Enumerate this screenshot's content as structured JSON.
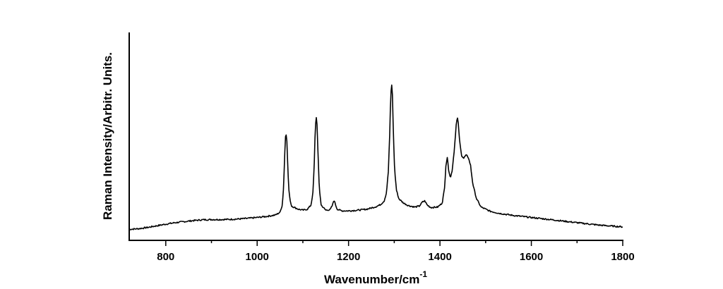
{
  "chart_data": {
    "type": "line",
    "title": "",
    "xlabel": "Wavenumber/cm",
    "xlabel_superscript": "-1",
    "ylabel": "Raman Intensity/Arbitr. Units.",
    "xlim": [
      720,
      1800
    ],
    "ylim": [
      0,
      1
    ],
    "x_ticks": [
      800,
      1000,
      1200,
      1400,
      1600,
      1800
    ],
    "x_tick_labels": [
      "800",
      "1000",
      "1200",
      "1400",
      "1600",
      "1800"
    ],
    "y_ticks_labeled": false,
    "grid": false,
    "legend": "none",
    "line_color": "#000000",
    "series": [
      {
        "values": [
          [
            720,
            0.053
          ],
          [
            740,
            0.056
          ],
          [
            760,
            0.062
          ],
          [
            780,
            0.07
          ],
          [
            800,
            0.078
          ],
          [
            820,
            0.085
          ],
          [
            840,
            0.09
          ],
          [
            860,
            0.095
          ],
          [
            880,
            0.099
          ],
          [
            900,
            0.1
          ],
          [
            920,
            0.1
          ],
          [
            940,
            0.101
          ],
          [
            960,
            0.103
          ],
          [
            980,
            0.106
          ],
          [
            1000,
            0.11
          ],
          [
            1020,
            0.115
          ],
          [
            1040,
            0.122
          ],
          [
            1050,
            0.135
          ],
          [
            1055,
            0.17
          ],
          [
            1058,
            0.26
          ],
          [
            1060,
            0.4
          ],
          [
            1062,
            0.5
          ],
          [
            1063,
            0.52
          ],
          [
            1065,
            0.48
          ],
          [
            1067,
            0.35
          ],
          [
            1070,
            0.22
          ],
          [
            1075,
            0.165
          ],
          [
            1080,
            0.16
          ],
          [
            1090,
            0.15
          ],
          [
            1100,
            0.145
          ],
          [
            1110,
            0.15
          ],
          [
            1118,
            0.17
          ],
          [
            1122,
            0.23
          ],
          [
            1125,
            0.37
          ],
          [
            1127,
            0.53
          ],
          [
            1129,
            0.6
          ],
          [
            1131,
            0.56
          ],
          [
            1133,
            0.42
          ],
          [
            1136,
            0.25
          ],
          [
            1140,
            0.17
          ],
          [
            1150,
            0.145
          ],
          [
            1160,
            0.148
          ],
          [
            1165,
            0.17
          ],
          [
            1168,
            0.195
          ],
          [
            1171,
            0.175
          ],
          [
            1175,
            0.15
          ],
          [
            1185,
            0.142
          ],
          [
            1200,
            0.142
          ],
          [
            1220,
            0.145
          ],
          [
            1240,
            0.15
          ],
          [
            1260,
            0.162
          ],
          [
            1270,
            0.172
          ],
          [
            1278,
            0.19
          ],
          [
            1283,
            0.23
          ],
          [
            1287,
            0.33
          ],
          [
            1290,
            0.5
          ],
          [
            1292,
            0.68
          ],
          [
            1294,
            0.76
          ],
          [
            1296,
            0.7
          ],
          [
            1298,
            0.52
          ],
          [
            1301,
            0.33
          ],
          [
            1305,
            0.24
          ],
          [
            1310,
            0.2
          ],
          [
            1320,
            0.18
          ],
          [
            1330,
            0.168
          ],
          [
            1345,
            0.16
          ],
          [
            1355,
            0.165
          ],
          [
            1362,
            0.185
          ],
          [
            1367,
            0.19
          ],
          [
            1372,
            0.17
          ],
          [
            1380,
            0.158
          ],
          [
            1395,
            0.16
          ],
          [
            1405,
            0.18
          ],
          [
            1410,
            0.25
          ],
          [
            1413,
            0.36
          ],
          [
            1416,
            0.4
          ],
          [
            1419,
            0.34
          ],
          [
            1423,
            0.3
          ],
          [
            1427,
            0.34
          ],
          [
            1432,
            0.45
          ],
          [
            1436,
            0.57
          ],
          [
            1439,
            0.59
          ],
          [
            1443,
            0.48
          ],
          [
            1447,
            0.41
          ],
          [
            1452,
            0.395
          ],
          [
            1457,
            0.41
          ],
          [
            1462,
            0.4
          ],
          [
            1467,
            0.36
          ],
          [
            1472,
            0.27
          ],
          [
            1480,
            0.2
          ],
          [
            1490,
            0.16
          ],
          [
            1510,
            0.14
          ],
          [
            1530,
            0.13
          ],
          [
            1560,
            0.12
          ],
          [
            1600,
            0.11
          ],
          [
            1650,
            0.098
          ],
          [
            1700,
            0.085
          ],
          [
            1750,
            0.073
          ],
          [
            1800,
            0.065
          ]
        ]
      }
    ]
  }
}
